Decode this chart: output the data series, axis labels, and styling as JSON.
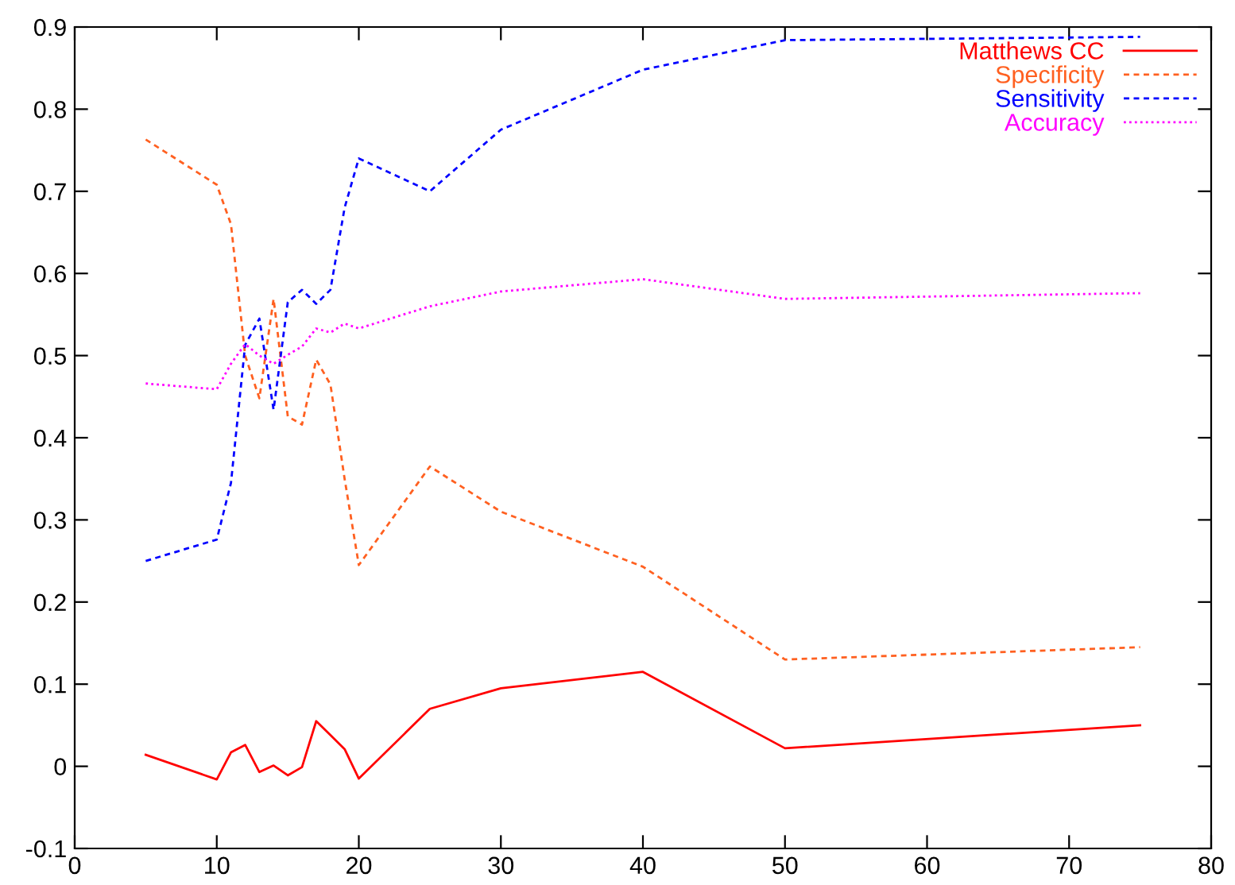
{
  "chart_data": {
    "type": "line",
    "x": [
      5,
      10,
      11,
      12,
      13,
      14,
      15,
      16,
      17,
      18,
      19,
      20,
      25,
      30,
      40,
      50,
      75
    ],
    "series": [
      {
        "name": "Matthews CC",
        "color": "#ff0000",
        "line_style": "solid",
        "values": [
          0.014,
          -0.016,
          0.017,
          0.026,
          -0.007,
          0.001,
          -0.011,
          -0.001,
          0.055,
          0.038,
          0.021,
          -0.015,
          0.07,
          0.095,
          0.115,
          0.022,
          0.05
        ]
      },
      {
        "name": "Specificity",
        "color": "#ff6020",
        "line_style": "dashed",
        "values": [
          0.763,
          0.708,
          0.66,
          0.5,
          0.448,
          0.569,
          0.426,
          0.416,
          0.495,
          0.465,
          0.35,
          0.245,
          0.365,
          0.31,
          0.243,
          0.13,
          0.145
        ]
      },
      {
        "name": "Sensitivity",
        "color": "#0000ff",
        "line_style": "dashed",
        "values": [
          0.25,
          0.276,
          0.345,
          0.513,
          0.545,
          0.434,
          0.565,
          0.58,
          0.563,
          0.58,
          0.68,
          0.74,
          0.7,
          0.775,
          0.848,
          0.884,
          0.888
        ]
      },
      {
        "name": "Accuracy",
        "color": "#ff00ff",
        "line_style": "dotted",
        "values": [
          0.466,
          0.459,
          0.49,
          0.514,
          0.5,
          0.49,
          0.501,
          0.511,
          0.533,
          0.528,
          0.539,
          0.533,
          0.56,
          0.578,
          0.593,
          0.569,
          0.576
        ]
      }
    ],
    "xlim": [
      0,
      80
    ],
    "xticks": [
      0,
      10,
      20,
      30,
      40,
      50,
      60,
      70,
      80
    ],
    "ylim": [
      -0.1,
      0.9
    ],
    "yticks": [
      -0.1,
      0,
      0.1,
      0.2,
      0.3,
      0.4,
      0.5,
      0.6,
      0.7,
      0.8,
      0.9
    ],
    "grid": false,
    "legend": "top right",
    "marker": "none"
  }
}
